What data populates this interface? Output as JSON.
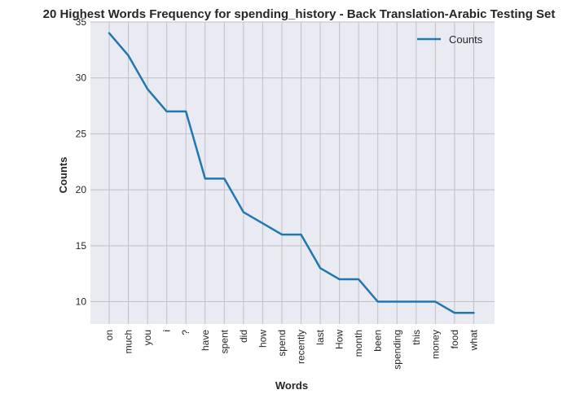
{
  "chart_data": {
    "type": "line",
    "title": "20 Highest Words Frequency for spending_history - Back Translation-Arabic Testing Set",
    "xlabel": "Words",
    "ylabel": "Counts",
    "categories": [
      "on",
      "much",
      "you",
      "i",
      "?",
      "have",
      "spent",
      "did",
      "how",
      "spend",
      "recently",
      "last",
      "How",
      "month",
      "been",
      "spending",
      "this",
      "money",
      "food",
      "what"
    ],
    "series": [
      {
        "name": "Counts",
        "values": [
          34,
          32,
          29,
          27,
          27,
          21,
          21,
          18,
          17,
          16,
          16,
          13,
          12,
          12,
          10,
          10,
          10,
          10,
          9,
          9
        ],
        "color": "#1f77b4"
      }
    ],
    "ylim": [
      8,
      35
    ],
    "yticks": [
      10,
      15,
      20,
      25,
      30,
      35
    ],
    "grid": true,
    "legend": "top-right",
    "background": "#eaeaf2",
    "grid_color": "#c0c0c8"
  }
}
